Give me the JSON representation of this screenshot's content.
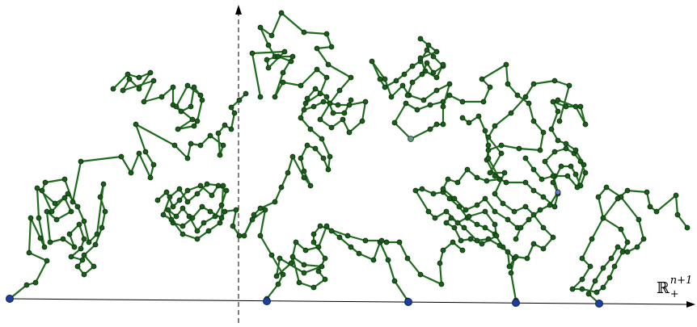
{
  "diagram": {
    "space_label": "ℝ",
    "space_superscript": "n+1",
    "space_subscript": "+",
    "colors": {
      "walk": "#1e6b1e",
      "vertex_fill": "#1a5c1a",
      "vertex_stroke": "#0b2e0b",
      "boundary_point": "#1f3f9e",
      "axis": "#000000",
      "start_point": "#6b7bd6"
    }
  }
}
